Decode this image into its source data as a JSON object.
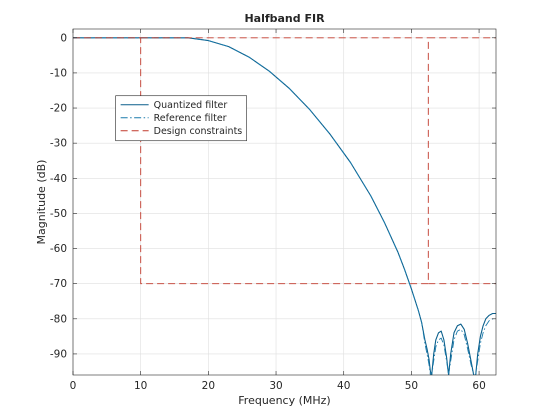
{
  "chart_data": {
    "type": "line",
    "title": "Halfband FIR",
    "xlabel": "Frequency (MHz)",
    "ylabel": "Magnitude (dB)",
    "xlim": [
      0,
      62.5
    ],
    "ylim": [
      -96,
      2.5
    ],
    "xticks": [
      0,
      10,
      20,
      30,
      40,
      50,
      60
    ],
    "yticks": [
      0,
      -10,
      -20,
      -30,
      -40,
      -50,
      -60,
      -70,
      -80,
      -90
    ],
    "grid": true,
    "legend_position": "upper-left",
    "colors": {
      "quantized": "#0a5f8c",
      "reference": "#1a7aab",
      "constraints": "#c1392b",
      "grid": "#dfdfdf",
      "axis": "#262626"
    },
    "series": [
      {
        "name": "Quantized filter",
        "style": "solid",
        "x": [
          0,
          5,
          10,
          15,
          17,
          20,
          23,
          26,
          29,
          32,
          35,
          38,
          41,
          44,
          46,
          48,
          49,
          50,
          51,
          51.5,
          52,
          52.3,
          52.6,
          52.8,
          53,
          53.3,
          53.6,
          54,
          54.4,
          54.8,
          55.2,
          55.5,
          55.8,
          56.3,
          56.8,
          57.3,
          57.8,
          58.3,
          58.8,
          59.2,
          59.5,
          59.8,
          60.2,
          60.6,
          61,
          61.5,
          62,
          62.5
        ],
        "y": [
          0,
          0,
          0,
          0,
          0,
          -0.8,
          -2.5,
          -5.5,
          -9.5,
          -14.5,
          -20.5,
          -27.5,
          -35.5,
          -45,
          -52.5,
          -61,
          -66,
          -71.5,
          -77.5,
          -81,
          -86,
          -88.5,
          -91.5,
          -95,
          -96,
          -90,
          -86,
          -84,
          -83.5,
          -86,
          -91,
          -96,
          -90,
          -84,
          -82,
          -81.5,
          -83,
          -87,
          -92,
          -96,
          -96,
          -90,
          -85,
          -82,
          -80,
          -79,
          -78.5,
          -78.5
        ]
      },
      {
        "name": "Reference filter",
        "style": "dashdot",
        "x": [
          0,
          5,
          10,
          15,
          17,
          20,
          23,
          26,
          29,
          32,
          35,
          38,
          41,
          44,
          46,
          48,
          49,
          50,
          51,
          51.5,
          52,
          52.3,
          52.6,
          52.8,
          53,
          53.3,
          53.6,
          54,
          54.4,
          54.8,
          55.2,
          55.5,
          55.8,
          56.3,
          56.8,
          57.3,
          57.8,
          58.3,
          58.8,
          59.2,
          59.5,
          59.8,
          60.2,
          60.6,
          61,
          61.5,
          62,
          62.5
        ],
        "y": [
          0,
          0,
          0,
          0,
          0,
          -0.8,
          -2.5,
          -5.5,
          -9.5,
          -14.5,
          -20.5,
          -27.5,
          -35.5,
          -45,
          -52.5,
          -61,
          -66,
          -71.5,
          -77.5,
          -81,
          -87,
          -90,
          -93,
          -96,
          -96,
          -92,
          -88,
          -86,
          -85.5,
          -87.5,
          -92,
          -96,
          -92,
          -86,
          -83.5,
          -83,
          -84.5,
          -88.5,
          -93,
          -96,
          -96,
          -92,
          -87,
          -84,
          -82,
          -80.5,
          -80,
          -80
        ]
      },
      {
        "name": "Design constraints",
        "style": "dashed",
        "x": [
          0,
          10,
          10,
          52.5,
          52.5,
          62.5
        ],
        "y": [
          0,
          0,
          -70,
          -70,
          0,
          0
        ]
      },
      {
        "name": "",
        "style": "dashed",
        "x": [
          10,
          52.5
        ],
        "y": [
          0,
          0
        ]
      },
      {
        "name": "",
        "style": "dashed",
        "x": [
          52.5,
          62.5
        ],
        "y": [
          -70,
          -70
        ]
      }
    ]
  }
}
